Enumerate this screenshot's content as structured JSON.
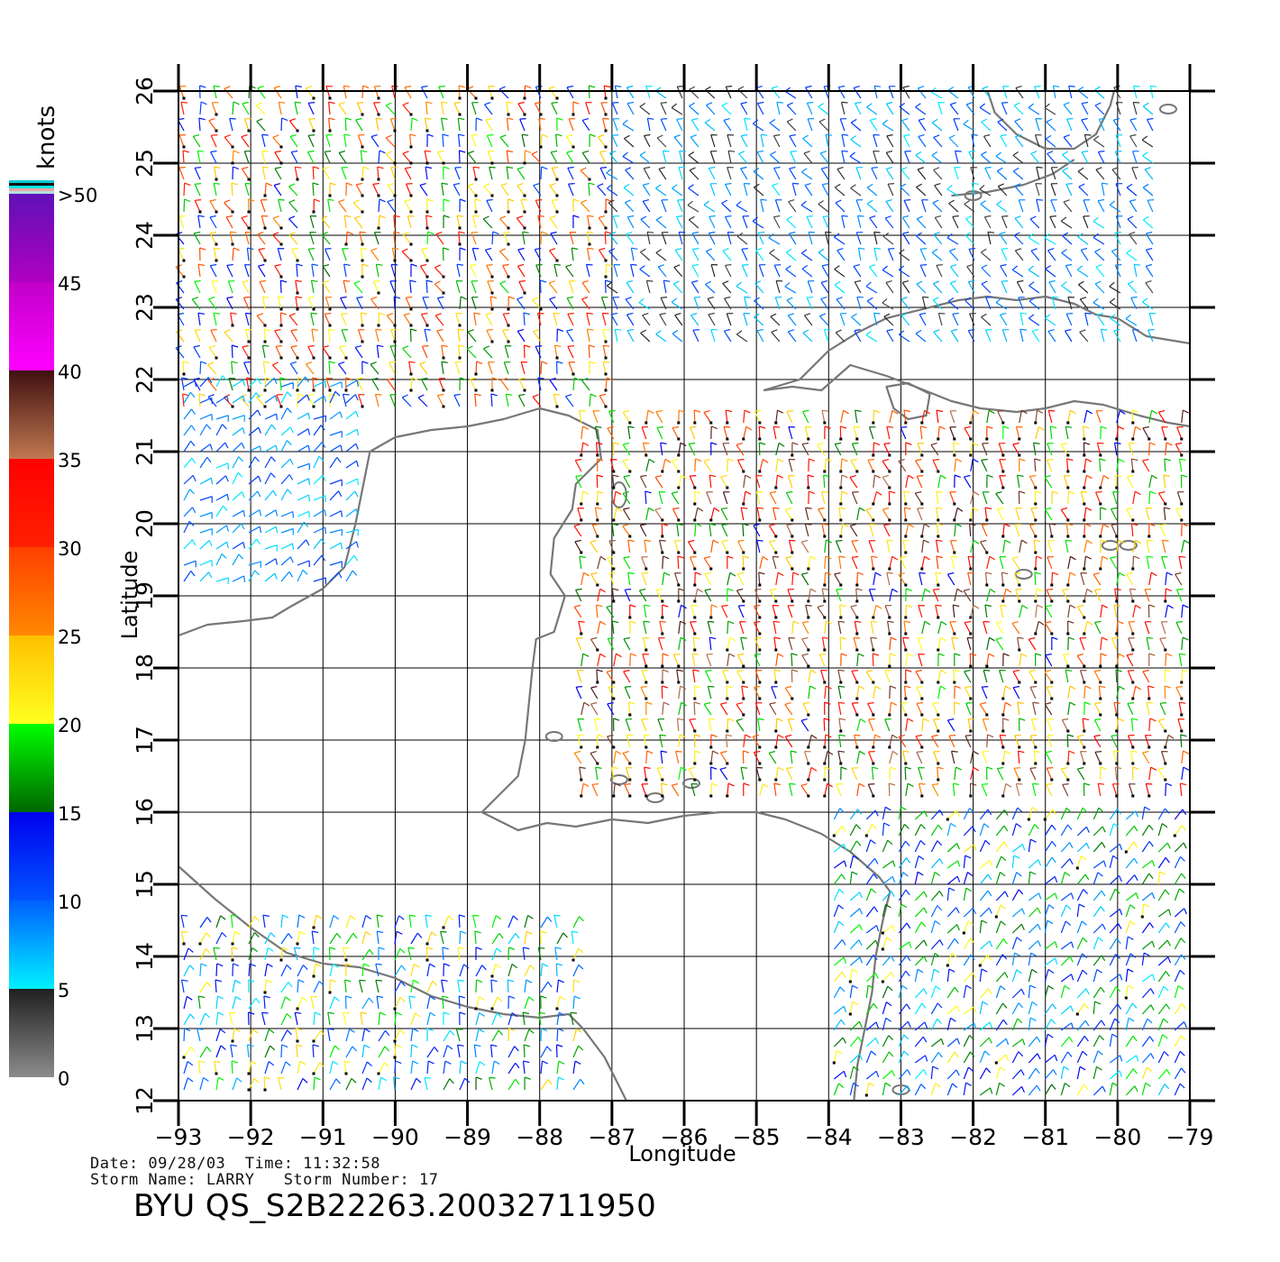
{
  "map": {
    "xlabel": "Longitude",
    "ylabel": "Latitude",
    "lon_range": [
      -93,
      -79
    ],
    "lat_range": [
      12,
      26
    ],
    "lon_ticks": [
      "−93",
      "−92",
      "−91",
      "−90",
      "−89",
      "−88",
      "−87",
      "−86",
      "−85",
      "−84",
      "−83",
      "−82",
      "−81",
      "−80",
      "−79"
    ],
    "lat_ticks": [
      "12",
      "13",
      "14",
      "15",
      "16",
      "17",
      "18",
      "19",
      "20",
      "21",
      "22",
      "23",
      "24",
      "25",
      "26"
    ],
    "grid": true,
    "coastline_color": "#777777"
  },
  "legend": {
    "title": "knots",
    "labels": [
      ">50",
      "45",
      "40",
      "35",
      "30",
      "25",
      "20",
      "15",
      "10",
      "5",
      "0"
    ],
    "top_swatch_colors": [
      "#00c8c8",
      "#111111",
      "#00e6e6",
      "#f2a6a6",
      "#b0e0e0"
    ],
    "bands": [
      {
        "from": 0,
        "to": 5,
        "colors": [
          "#8c8c8c",
          "#202020"
        ]
      },
      {
        "from": 5,
        "to": 10,
        "colors": [
          "#00f0ff",
          "#0060ff"
        ]
      },
      {
        "from": 10,
        "to": 15,
        "colors": [
          "#0055ff",
          "#0000ee"
        ]
      },
      {
        "from": 15,
        "to": 20,
        "colors": [
          "#006600",
          "#00ff00"
        ]
      },
      {
        "from": 20,
        "to": 25,
        "colors": [
          "#ffff20",
          "#ffc000"
        ]
      },
      {
        "from": 25,
        "to": 30,
        "colors": [
          "#ff8800",
          "#ff4000"
        ]
      },
      {
        "from": 30,
        "to": 35,
        "colors": [
          "#ff2000",
          "#ff0000"
        ]
      },
      {
        "from": 35,
        "to": 40,
        "colors": [
          "#c07850",
          "#401010"
        ]
      },
      {
        "from": 40,
        "to": 45,
        "colors": [
          "#ff00ff",
          "#c000c8"
        ]
      },
      {
        "from": 45,
        "to": 50,
        "colors": [
          "#b000c0",
          "#6010b8"
        ]
      }
    ]
  },
  "footer": {
    "date_line": "Date: 09/28/03  Time: 11:32:58",
    "storm_line": "Storm Name: LARRY   Storm Number: 17",
    "product_id": "BYU QS_S2B22263.20032711950"
  },
  "wind_field": {
    "regions": [
      {
        "lon": [
          -93,
          -87
        ],
        "lat": [
          21.5,
          26
        ],
        "speed_knots": [
          10,
          33
        ],
        "bearing_deg": 250
      },
      {
        "lon": [
          -87,
          -79.5
        ],
        "lat": [
          22.5,
          26
        ],
        "speed_knots": [
          3,
          12
        ],
        "bearing_deg": 235
      },
      {
        "lon": [
          -93,
          -90.5
        ],
        "lat": [
          19,
          22
        ],
        "speed_knots": [
          5,
          12
        ],
        "bearing_deg": 320
      },
      {
        "lon": [
          -87.5,
          -79
        ],
        "lat": [
          16,
          21.5
        ],
        "speed_knots": [
          14,
          40
        ],
        "bearing_deg": 260
      },
      {
        "lon": [
          -84,
          -79
        ],
        "lat": [
          12,
          16
        ],
        "speed_knots": [
          5,
          22
        ],
        "bearing_deg": 300
      },
      {
        "lon": [
          -93,
          -87.5
        ],
        "lat": [
          12,
          14.5
        ],
        "speed_knots": [
          5,
          24
        ],
        "bearing_deg": 280
      }
    ]
  }
}
